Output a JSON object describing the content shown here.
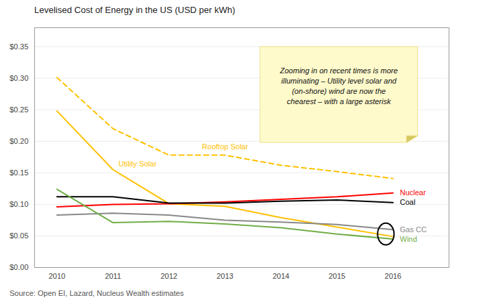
{
  "chart_data": {
    "type": "line",
    "title": "Levelised Cost of Energy in the US (USD per kWh)",
    "caption": "Source: Open EI, Lazard, Nucleus Wealth estimates",
    "annotations": [
      "Zooming in on recent times is more\nilluminating – Utility level solar and\n(on-shore) wind are now the\nchearest – with a large asterisk"
    ],
    "x": [
      2010,
      2011,
      2012,
      2013,
      2014,
      2015,
      2016
    ],
    "series": [
      {
        "name": "Rooftop Solar",
        "color": "#FFC000",
        "line_style": "dashed",
        "values": [
          0.301,
          0.22,
          0.178,
          0.178,
          0.162,
          0.152,
          0.141
        ]
      },
      {
        "name": "Utility Solar",
        "color": "#FFC000",
        "line_style": "solid",
        "values": [
          0.248,
          0.155,
          0.101,
          0.097,
          0.079,
          0.064,
          0.049
        ]
      },
      {
        "name": "Nuclear",
        "color": "#FF0000",
        "line_style": "solid",
        "values": [
          0.096,
          0.1,
          0.101,
          0.104,
          0.108,
          0.112,
          0.118
        ]
      },
      {
        "name": "Coal",
        "color": "#000000",
        "line_style": "solid",
        "values": [
          0.112,
          0.112,
          0.102,
          0.102,
          0.105,
          0.107,
          0.103
        ]
      },
      {
        "name": "Gas CC",
        "color": "#888888",
        "line_style": "solid",
        "values": [
          0.083,
          0.086,
          0.083,
          0.075,
          0.072,
          0.068,
          0.06
        ]
      },
      {
        "name": "Wind",
        "color": "#70AD47",
        "line_style": "solid",
        "values": [
          0.124,
          0.071,
          0.073,
          0.069,
          0.063,
          0.053,
          0.045
        ]
      }
    ],
    "xlim": [
      2009.6,
      2017.0
    ],
    "xticks": [
      2010,
      2011,
      2012,
      2013,
      2014,
      2015,
      2016
    ],
    "ylim": [
      0.0,
      0.38
    ],
    "yticks": [
      {
        "value": 0.0,
        "label": "$0.00"
      },
      {
        "value": 0.05,
        "label": "$0.05"
      },
      {
        "value": 0.1,
        "label": "$0.10"
      },
      {
        "value": 0.15,
        "label": "$0.15"
      },
      {
        "value": 0.2,
        "label": "$0.20"
      },
      {
        "value": 0.25,
        "label": "$0.25"
      },
      {
        "value": 0.3,
        "label": "$0.30"
      },
      {
        "value": 0.35,
        "label": "$0.35"
      }
    ],
    "grid": "y"
  }
}
